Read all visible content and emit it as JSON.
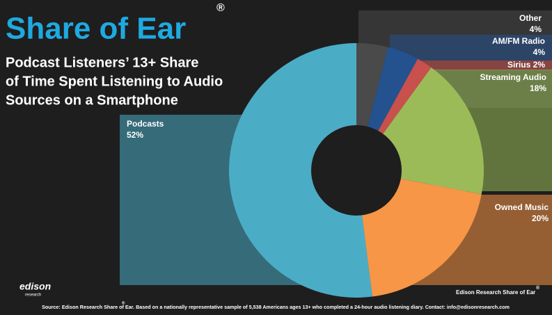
{
  "chart_data": {
    "type": "pie",
    "title": "Share of Ear",
    "registered": "®",
    "subtitle": [
      "Podcast Listeners’ 13+ Share",
      "of Time Spent Listening to Audio",
      "Sources on a Smartphone"
    ],
    "categories": [
      "Other",
      "AM/FM Radio",
      "Sirius",
      "Streaming Audio",
      "Owned Music",
      "Podcasts"
    ],
    "values": [
      4,
      4,
      2,
      18,
      20,
      52
    ],
    "value_labels": [
      "4%",
      "4%",
      "2%",
      "18%",
      "20%",
      "52%"
    ],
    "colors": [
      "#4a4a4a",
      "#24528f",
      "#c8504d",
      "#9bbb59",
      "#f79646",
      "#4bacc6"
    ]
  },
  "footer": {
    "credit": "Edison Research Share of Ear",
    "credit_mark": "®",
    "source": "Source: Edison Research Share of Ear. Based on a nationally representative sample of 5,538 Americans ages 13+ who completed a 24-hour audio listening diary.  Contact: info@edisonresearch.com",
    "source_mark": "®"
  },
  "logo": {
    "name": "edison",
    "sub": "research"
  }
}
